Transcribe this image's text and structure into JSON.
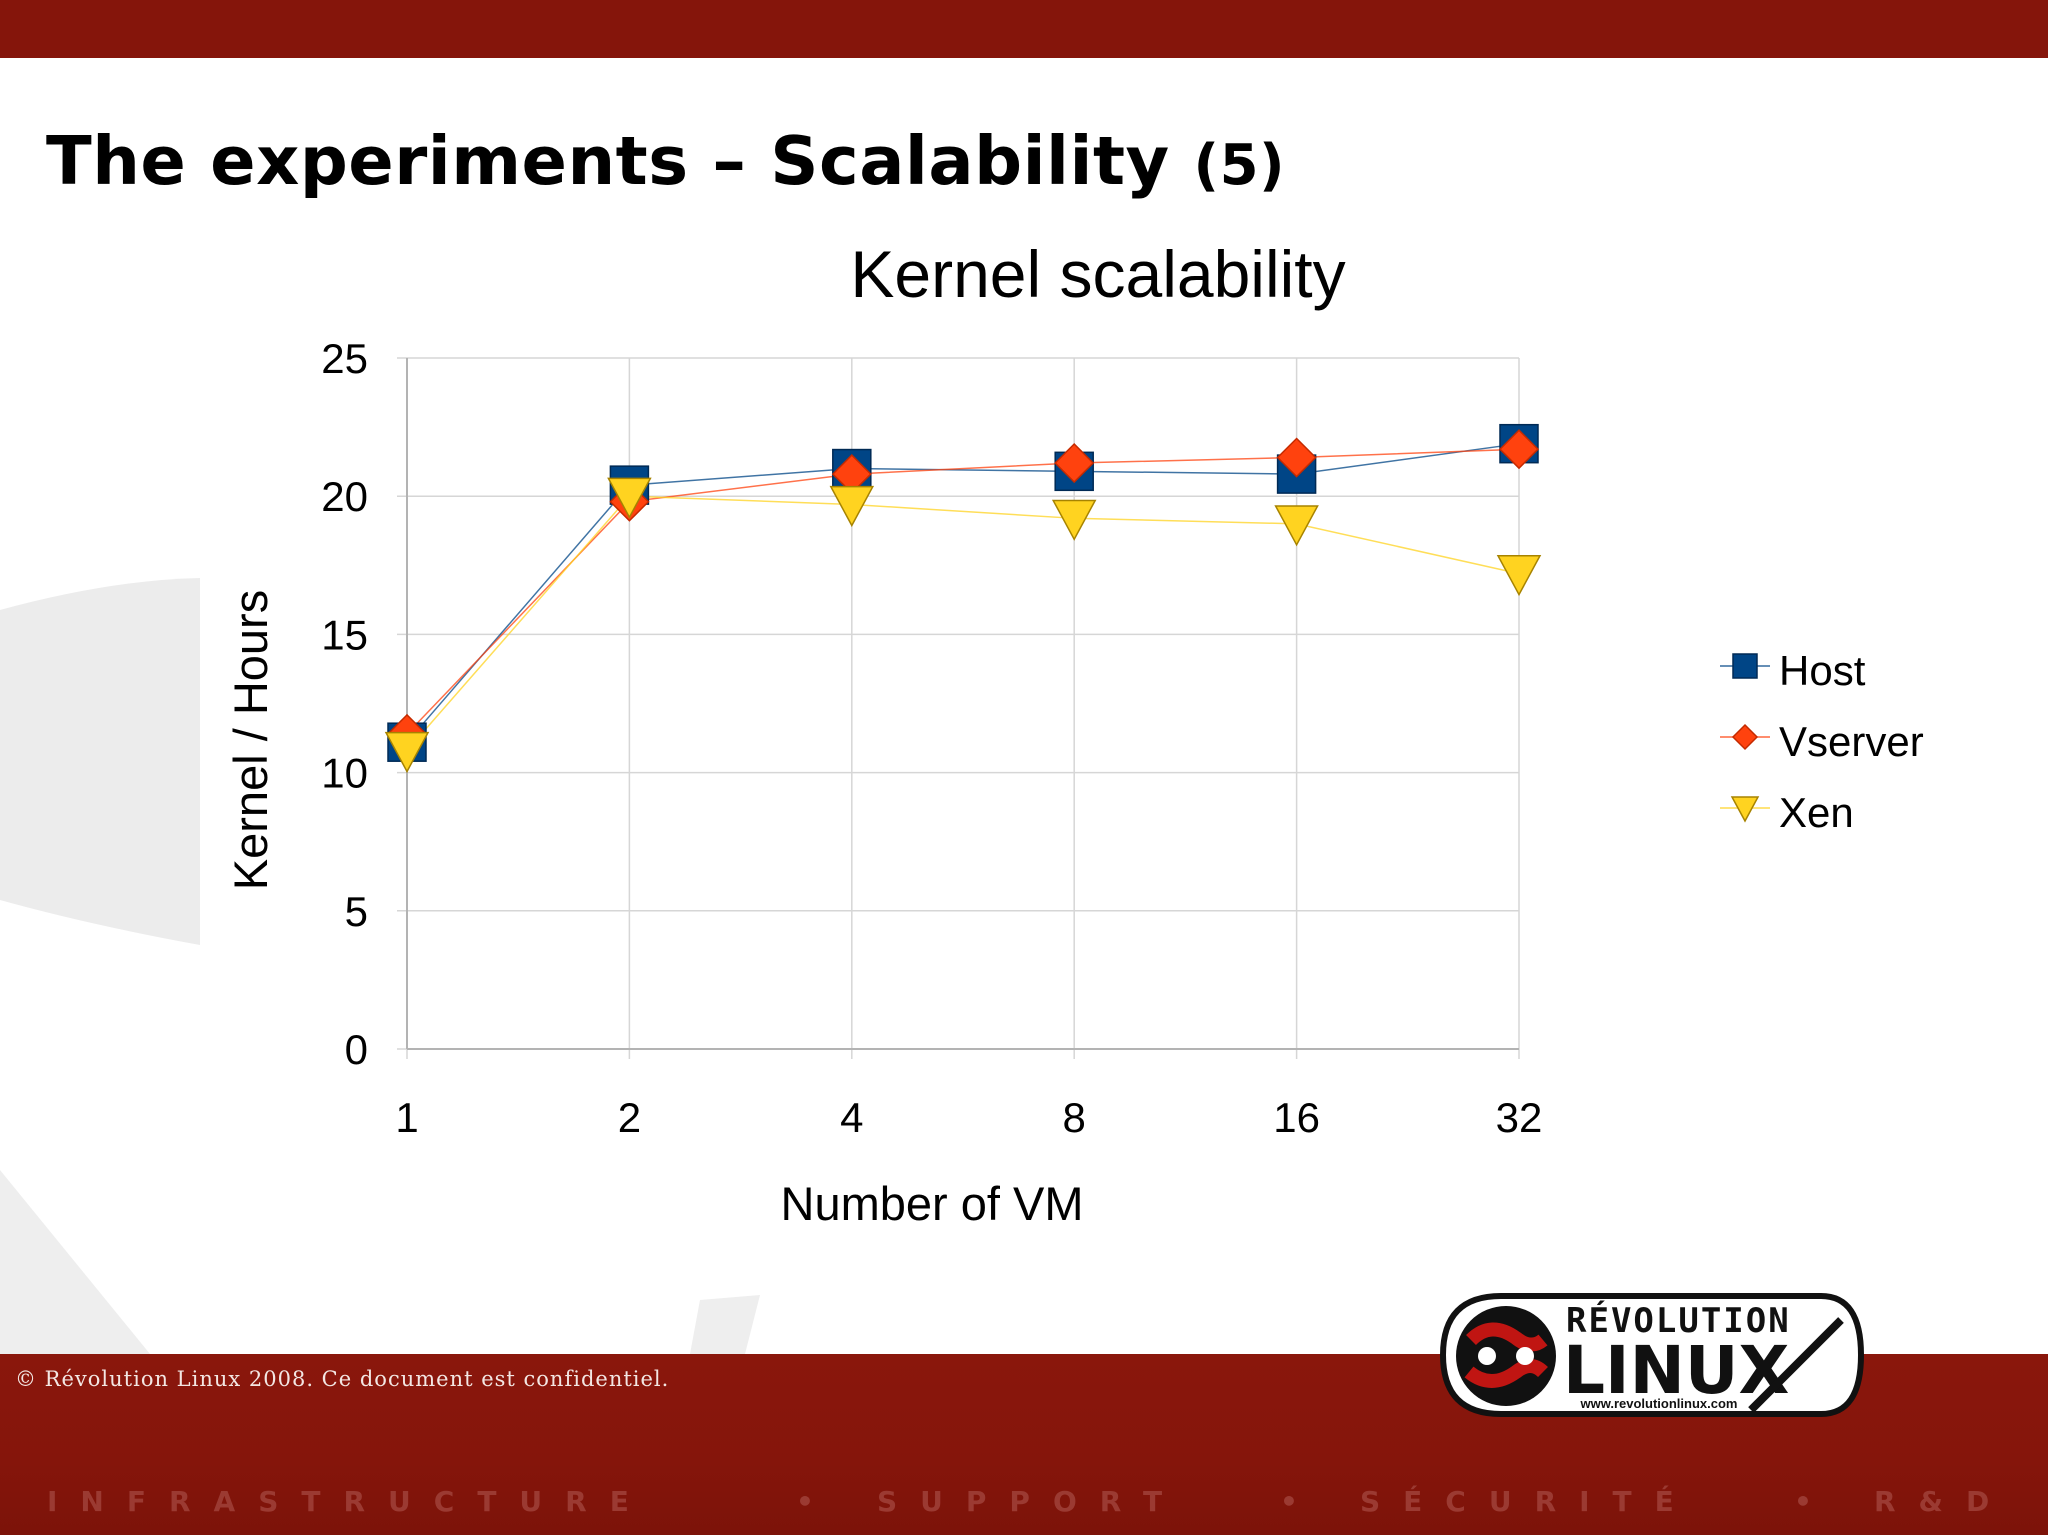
{
  "slide": {
    "title_main": "The experiments – Scalability",
    "title_num": "(5)"
  },
  "chart_data": {
    "type": "line",
    "title": "Kernel scalability",
    "xlabel": "Number of VM",
    "ylabel": "Kernel / Hours",
    "categories": [
      "1",
      "2",
      "4",
      "8",
      "16",
      "32"
    ],
    "ylim": [
      0,
      25
    ],
    "yticks": [
      "0",
      "5",
      "10",
      "15",
      "20",
      "25"
    ],
    "grid": true,
    "legend_position": "right",
    "series": [
      {
        "name": "Host",
        "values": [
          11.1,
          20.4,
          21.0,
          20.9,
          20.8,
          21.9
        ],
        "color": "#004586",
        "marker": "square"
      },
      {
        "name": "Vserver",
        "values": [
          11.4,
          19.8,
          20.8,
          21.2,
          21.4,
          21.7
        ],
        "color": "#ff420e",
        "marker": "diamond"
      },
      {
        "name": "Xen",
        "values": [
          10.8,
          20.0,
          19.7,
          19.2,
          19.0,
          17.2
        ],
        "color": "#ffd320",
        "marker": "triangle-down"
      }
    ]
  },
  "footer": {
    "copyright": "© Révolution Linux 2008. Ce document est confidentiel.",
    "tagline": [
      "INFRASTRUCTURE",
      "SUPPORT",
      "SÉCURITÉ",
      "R&D"
    ],
    "separator": "•"
  },
  "logo": {
    "name_top": "RÉVOLUTION",
    "name_main": "LINUX",
    "url": "www.revolutionlinux.com"
  }
}
